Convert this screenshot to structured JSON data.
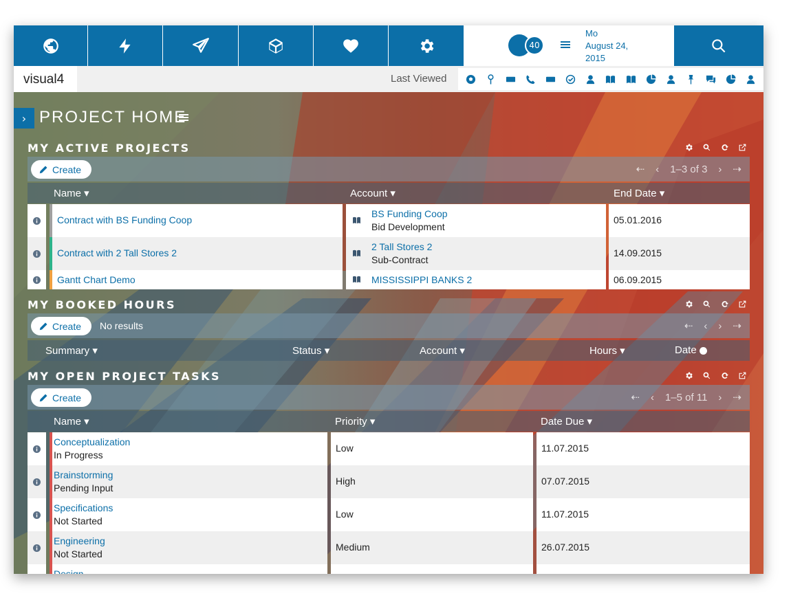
{
  "topbar": {
    "nav": [
      "globe-icon",
      "bolt-icon",
      "paper-plane-icon",
      "cube-icon",
      "heart-icon",
      "gear-icon"
    ],
    "notification_count": "40",
    "date_lines": [
      "Mo",
      "August 24,",
      "2015"
    ],
    "search_icon": "search-icon",
    "accent": "#0c6fa8"
  },
  "bar2": {
    "app_name": "visual4",
    "last_viewed_label": "Last Viewed",
    "recent_icons": [
      "soccer-icon",
      "pin-icon",
      "card-icon",
      "phone-icon",
      "card-icon",
      "check-circle-icon",
      "user-icon",
      "book-icon",
      "book-icon",
      "pie-icon",
      "user-icon",
      "pushpin-icon",
      "chat-icon",
      "pie-icon",
      "user-icon"
    ]
  },
  "page": {
    "title": "PROJECT HOME"
  },
  "active_projects": {
    "title": "MY ACTIVE PROJECTS",
    "create_label": "Create",
    "pager_text": "1–3 of 3",
    "columns": [
      "Name ▾",
      "Account ▾",
      "End Date ▾"
    ],
    "rows": [
      {
        "name": "Contract with BS Funding Coop",
        "account": "BS Funding Coop",
        "account_sub": "Bid Development",
        "end_date": "05.01.2016",
        "stripe": "#a0a0a0"
      },
      {
        "name": "Contract with 2 Tall Stores 2",
        "account": "2 Tall Stores 2",
        "account_sub": "Sub-Contract",
        "end_date": "14.09.2015",
        "stripe": "#2db38a"
      },
      {
        "name": "Gantt Chart Demo",
        "account": "MISSISSIPPI BANKS 2",
        "account_sub": "",
        "end_date": "06.09.2015",
        "stripe": "#f0a040"
      }
    ]
  },
  "booked_hours": {
    "title": "MY BOOKED HOURS",
    "create_label": "Create",
    "no_results": "No results",
    "columns": [
      "Summary ▾",
      "Status ▾",
      "Account ▾",
      "Hours ▾",
      "Date"
    ]
  },
  "open_tasks": {
    "title": "MY OPEN PROJECT TASKS",
    "create_label": "Create",
    "pager_text": "1–5 of 11",
    "columns": [
      "Name ▾",
      "Priority ▾",
      "Date Due ▾"
    ],
    "rows": [
      {
        "name": "Conceptualization",
        "status": "In Progress",
        "priority": "Low",
        "date_due": "11.07.2015"
      },
      {
        "name": "Brainstorming",
        "status": "Pending Input",
        "priority": "High",
        "date_due": "07.07.2015"
      },
      {
        "name": "Specifications",
        "status": "Not Started",
        "priority": "Low",
        "date_due": "11.07.2015"
      },
      {
        "name": "Engineering",
        "status": "Not Started",
        "priority": "Medium",
        "date_due": "26.07.2015"
      },
      {
        "name": "Design",
        "status": "",
        "priority": "",
        "date_due": ""
      }
    ],
    "stripe_color": "#d9534f"
  }
}
